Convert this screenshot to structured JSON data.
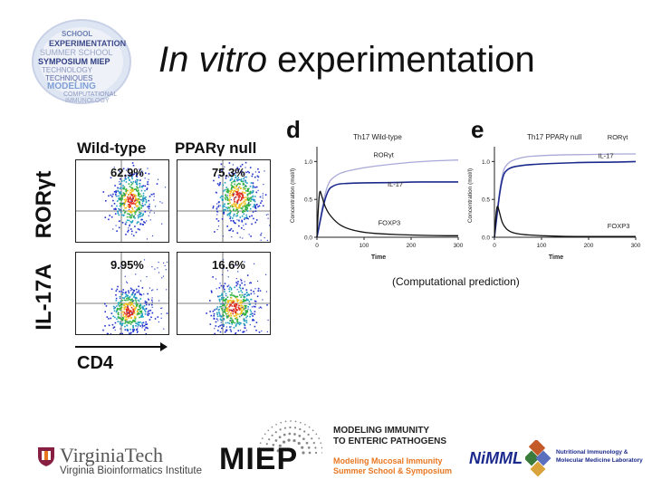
{
  "title": {
    "italic": "In vitro",
    "rest": " experimentation"
  },
  "badge": {
    "words": [
      "SCHOOL",
      "EXPERIMENTATION",
      "SUMMER SCHOOL",
      "SYMPOSIUM MIEP",
      "TECHNOLOGY",
      "TECHNIQUES",
      "MODELING",
      "COMPUTATIONAL",
      "IMMUNOLOGY"
    ]
  },
  "flow": {
    "col_labels": [
      "Wild-type",
      "PPARγ null"
    ],
    "y_labels": [
      "RORγt",
      "IL-17A"
    ],
    "x_label": "CD4",
    "percents": [
      "62.9%",
      "75.3%",
      "9.95%",
      "16.6%"
    ]
  },
  "model": {
    "panels": [
      {
        "letter": "d",
        "title": "Th17 Wild-type",
        "series_labels": [
          "RORγt",
          "IL-17",
          "FOXP3"
        ]
      },
      {
        "letter": "e",
        "title": "Th17 PPARγ null",
        "series_labels": [
          "RORγt",
          "IL-17",
          "FOXP3"
        ]
      }
    ],
    "ylabel": "Concentration (mol/l)",
    "xlabel": "Time",
    "yticks": [
      "0.0",
      "0.5",
      "1.0"
    ],
    "xticks": [
      "0",
      "100",
      "200",
      "300"
    ],
    "caption": "(Computational prediction)"
  },
  "chart_data": [
    {
      "type": "line",
      "title": "Th17 Wild-type",
      "xlabel": "Time",
      "ylabel": "Concentration (mol/l)",
      "xlim": [
        0,
        300
      ],
      "ylim": [
        0,
        1.1
      ],
      "series": [
        {
          "name": "RORγt",
          "x": [
            0,
            20,
            40,
            60,
            100,
            150,
            200,
            250,
            300
          ],
          "values": [
            0.0,
            0.7,
            0.82,
            0.87,
            0.92,
            0.96,
            0.99,
            1.01,
            1.02
          ]
        },
        {
          "name": "IL-17",
          "x": [
            0,
            20,
            40,
            60,
            100,
            150,
            200,
            250,
            300
          ],
          "values": [
            0.0,
            0.62,
            0.7,
            0.71,
            0.72,
            0.72,
            0.73,
            0.73,
            0.73
          ]
        },
        {
          "name": "FOXP3",
          "x": [
            0,
            5,
            10,
            20,
            40,
            60,
            100,
            150,
            200,
            250,
            300
          ],
          "values": [
            0.0,
            0.65,
            0.55,
            0.35,
            0.2,
            0.12,
            0.06,
            0.04,
            0.03,
            0.02,
            0.02
          ]
        }
      ]
    },
    {
      "type": "line",
      "title": "Th17 PPARγ null",
      "xlabel": "Time",
      "ylabel": "Concentration (mol/l)",
      "xlim": [
        0,
        300
      ],
      "ylim": [
        0,
        1.1
      ],
      "series": [
        {
          "name": "RORγt",
          "x": [
            0,
            15,
            30,
            60,
            100,
            150,
            200,
            250,
            300
          ],
          "values": [
            0.0,
            0.85,
            1.0,
            1.06,
            1.08,
            1.09,
            1.09,
            1.1,
            1.1
          ]
        },
        {
          "name": "IL-17",
          "x": [
            0,
            15,
            30,
            60,
            100,
            150,
            200,
            250,
            300
          ],
          "values": [
            0.0,
            0.8,
            0.92,
            0.95,
            0.97,
            0.98,
            0.99,
            0.99,
            1.0
          ]
        },
        {
          "name": "FOXP3",
          "x": [
            0,
            5,
            10,
            15,
            20,
            30,
            50,
            100,
            150,
            200,
            250,
            300
          ],
          "values": [
            0.0,
            0.45,
            0.35,
            0.22,
            0.15,
            0.08,
            0.04,
            0.02,
            0.01,
            0.01,
            0.01,
            0.01
          ]
        }
      ]
    }
  ],
  "logos": {
    "vt_name": "VirginiaTech",
    "vt_sub": "Virginia Bioinformatics Institute",
    "miep": "MIEP",
    "miep_lines": [
      "MODELING IMMUNITY",
      "TO ENTERIC PATHOGENS"
    ],
    "miep_sub": [
      "Modeling Mucosal Immunity",
      "Summer School & Symposium"
    ],
    "nimml": "NiMML",
    "nimml_sub": [
      "Nutritional Immunology &",
      "Molecular Medicine Laboratory"
    ]
  },
  "colors": {
    "navy": "#1b2a8c",
    "lavender": "#a9a8d8",
    "black": "#111111",
    "vt_maroon": "#861f41",
    "miep_orange": "#e87722"
  }
}
